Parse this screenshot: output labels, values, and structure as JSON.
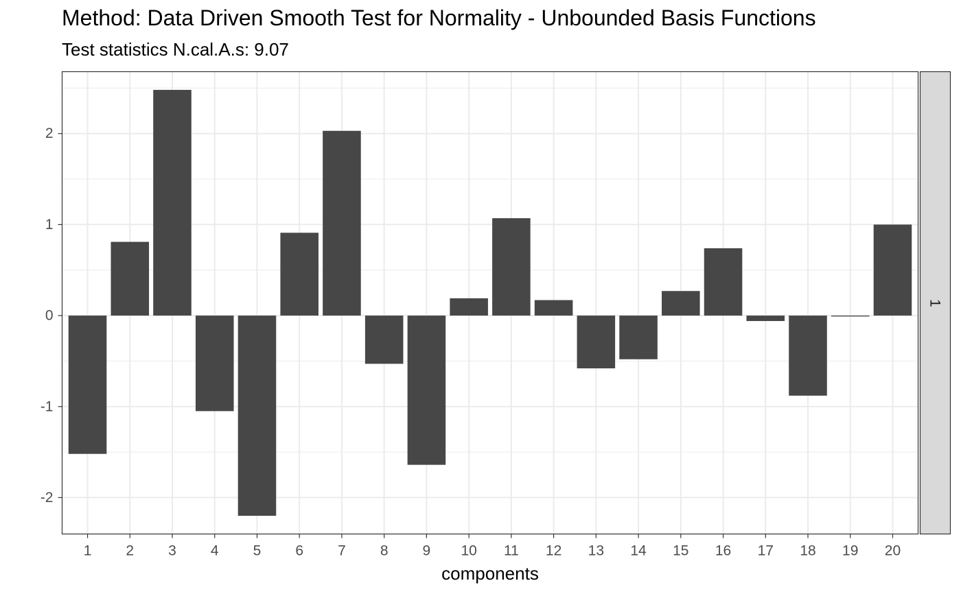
{
  "chart_data": {
    "type": "bar",
    "title": "Method: Data Driven Smooth Test for Normality - Unbounded Basis Functions",
    "subtitle": "Test statistics N.cal.A.s: 9.07",
    "xlabel": "components",
    "ylabel": "",
    "categories": [
      "1",
      "2",
      "3",
      "4",
      "5",
      "6",
      "7",
      "8",
      "9",
      "10",
      "11",
      "12",
      "13",
      "14",
      "15",
      "16",
      "17",
      "18",
      "19",
      "20"
    ],
    "values": [
      -1.52,
      0.81,
      2.48,
      -1.05,
      -2.2,
      0.91,
      2.03,
      -0.53,
      -1.64,
      0.19,
      1.07,
      0.17,
      -0.58,
      -0.48,
      0.27,
      0.74,
      -0.06,
      -0.88,
      -0.01,
      1.0
    ],
    "y_ticks": [
      -2,
      -1,
      0,
      1,
      2
    ],
    "ylim": [
      -2.4,
      2.68
    ],
    "facet_label": "1",
    "grid": true,
    "bar_color": "#474747",
    "panel_border_color": "#333333",
    "grid_color": "#ebebeb",
    "strip_fill": "#d9d9d9"
  }
}
